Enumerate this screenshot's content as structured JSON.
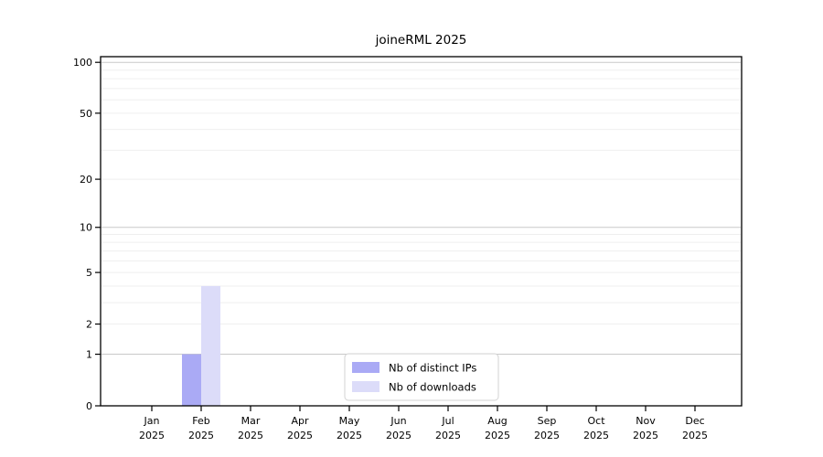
{
  "chart_data": {
    "type": "bar",
    "title": "joineRML 2025",
    "x_categories": [
      "Jan",
      "Feb",
      "Mar",
      "Apr",
      "May",
      "Jun",
      "Jul",
      "Aug",
      "Sep",
      "Oct",
      "Nov",
      "Dec"
    ],
    "x_year_labels": [
      "2025",
      "2025",
      "2025",
      "2025",
      "2025",
      "2025",
      "2025",
      "2025",
      "2025",
      "2025",
      "2025",
      "2025"
    ],
    "series": [
      {
        "name": "Nb of distinct IPs",
        "color": "#aaaaf5",
        "values": [
          0,
          1,
          0,
          0,
          0,
          0,
          0,
          0,
          0,
          0,
          0,
          0
        ]
      },
      {
        "name": "Nb of downloads",
        "color": "#dcdcf9",
        "values": [
          0,
          4,
          0,
          0,
          0,
          0,
          0,
          0,
          0,
          0,
          0,
          0
        ]
      }
    ],
    "y_ticks": [
      0,
      1,
      2,
      5,
      10,
      20,
      50,
      100
    ],
    "y_tick_labels": [
      "0",
      "1",
      "2",
      "5",
      "10",
      "20",
      "50",
      "100"
    ],
    "y_scale": "log1p",
    "ylim": [
      0,
      108
    ],
    "grid": {
      "major_values": [
        1,
        10,
        100
      ],
      "minor_values": [
        2,
        3,
        4,
        5,
        6,
        7,
        8,
        9,
        20,
        30,
        40,
        50,
        60,
        70,
        80,
        90
      ],
      "major_color": "#c9c9c9",
      "minor_color": "#efefef"
    },
    "legend": {
      "position": "bottom-center",
      "labels": [
        "Nb of distinct IPs",
        "Nb of downloads"
      ],
      "border_color": "#d3d3d3",
      "background": "#ffffff"
    },
    "axis_color": "#000000"
  }
}
